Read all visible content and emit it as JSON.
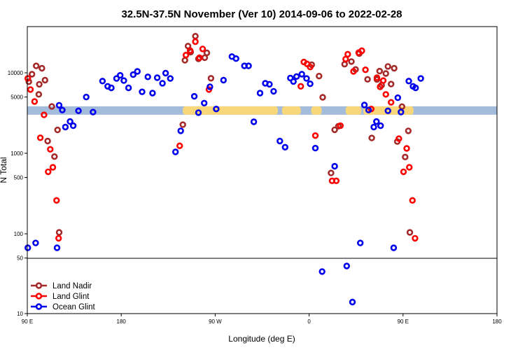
{
  "chart_data": {
    "type": "scatter",
    "title": "32.5N-37.5N November (Ver 10)   2014-09-06 to 2022-02-28",
    "xlabel": "Longitude (deg E)",
    "ylabel": "N Total",
    "x_ticks": [
      {
        "value": 90,
        "label": "90 E"
      },
      {
        "value": 180,
        "label": "180"
      },
      {
        "value": 270,
        "label": "90 W"
      },
      {
        "value": 360,
        "label": "0"
      },
      {
        "value": 450,
        "label": "90 E"
      },
      {
        "value": 540,
        "label": "180"
      }
    ],
    "y_ticks": [
      {
        "value": 10,
        "label": "10"
      },
      {
        "value": 50,
        "label": "50"
      },
      {
        "value": 100,
        "label": "100"
      },
      {
        "value": 500,
        "label": "500"
      },
      {
        "value": 1000,
        "label": "1000"
      },
      {
        "value": 5000,
        "label": "5000"
      },
      {
        "value": 10000,
        "label": "10000"
      }
    ],
    "xlim": [
      90,
      540
    ],
    "ylim": [
      10,
      40000
    ],
    "y_scale": "log",
    "panel_split_y": 50,
    "land_color": "#f8d77a",
    "ocean_color": "#a4bcdc",
    "legend_position": "bottom-left",
    "series": [
      {
        "name": "Land Nadir",
        "color": "#a52a2a",
        "points": [
          [
            91.5,
            7750
          ],
          [
            94.5,
            9600
          ],
          [
            98.5,
            12200
          ],
          [
            101,
            5400
          ],
          [
            101.5,
            7200
          ],
          [
            104,
            11400
          ],
          [
            107,
            8100
          ],
          [
            109.5,
            1420
          ],
          [
            113.5,
            3820
          ],
          [
            116,
            910
          ],
          [
            119,
            1950
          ],
          [
            120.5,
            104
          ],
          [
            239,
            2270
          ],
          [
            241,
            14300
          ],
          [
            244,
            21500
          ],
          [
            246.5,
            18100
          ],
          [
            251,
            28500
          ],
          [
            254,
            14900
          ],
          [
            260,
            15400
          ],
          [
            262,
            17700
          ],
          [
            266,
            8550
          ],
          [
            362.5,
            12600
          ],
          [
            369.5,
            9100
          ],
          [
            373,
            4960
          ],
          [
            381,
            570
          ],
          [
            384.5,
            1960
          ],
          [
            388,
            2170
          ],
          [
            394,
            12800
          ],
          [
            400.5,
            13800
          ],
          [
            404.5,
            11000
          ],
          [
            408,
            17300
          ],
          [
            416,
            8300
          ],
          [
            420,
            1550
          ],
          [
            425,
            8250
          ],
          [
            427.5,
            10500
          ],
          [
            429.5,
            7050
          ],
          [
            433.5,
            9800
          ],
          [
            435.5,
            12000
          ],
          [
            438.5,
            7250
          ],
          [
            441.5,
            11400
          ],
          [
            444.5,
            1400
          ],
          [
            449,
            3800
          ],
          [
            452,
            900
          ],
          [
            455,
            1900
          ],
          [
            456.5,
            104
          ]
        ]
      },
      {
        "name": "Land Glint",
        "color": "#ff0000",
        "points": [
          [
            90.5,
            8500
          ],
          [
            93,
            6200
          ],
          [
            97,
            4400
          ],
          [
            102.5,
            1560
          ],
          [
            106,
            3000
          ],
          [
            110,
            590
          ],
          [
            112,
            1120
          ],
          [
            114.5,
            670
          ],
          [
            118,
            260
          ],
          [
            120,
            88
          ],
          [
            236,
            1240
          ],
          [
            242,
            16600
          ],
          [
            246,
            18900
          ],
          [
            251,
            24400
          ],
          [
            255,
            15400
          ],
          [
            258,
            19800
          ],
          [
            264,
            6200
          ],
          [
            352,
            6800
          ],
          [
            355,
            13600
          ],
          [
            358,
            12900
          ],
          [
            361,
            11800
          ],
          [
            366,
            1660
          ],
          [
            382,
            455
          ],
          [
            386,
            455
          ],
          [
            390,
            2200
          ],
          [
            395,
            14800
          ],
          [
            397,
            17000
          ],
          [
            402.5,
            10400
          ],
          [
            407.5,
            17800
          ],
          [
            410.5,
            18800
          ],
          [
            414,
            10900
          ],
          [
            419.5,
            3550
          ],
          [
            425,
            8700
          ],
          [
            428,
            6700
          ],
          [
            431,
            8000
          ],
          [
            433.5,
            5400
          ],
          [
            438.5,
            4300
          ],
          [
            446,
            1520
          ],
          [
            450.5,
            590
          ],
          [
            453.5,
            1150
          ],
          [
            456,
            670
          ],
          [
            459,
            260
          ],
          [
            461.5,
            88
          ]
        ]
      },
      {
        "name": "Ocean Glint",
        "color": "#0000ee",
        "points": [
          [
            90.5,
            67
          ],
          [
            98,
            77
          ],
          [
            118.5,
            67
          ],
          [
            120.5,
            3950
          ],
          [
            123.5,
            3450
          ],
          [
            126.5,
            2120
          ],
          [
            131,
            2480
          ],
          [
            134,
            2200
          ],
          [
            139,
            3370
          ],
          [
            146.5,
            5000
          ],
          [
            153,
            3250
          ],
          [
            162,
            7900
          ],
          [
            167,
            6800
          ],
          [
            170.5,
            6500
          ],
          [
            175.5,
            8500
          ],
          [
            179,
            9300
          ],
          [
            182.5,
            8000
          ],
          [
            187,
            6500
          ],
          [
            191.5,
            9500
          ],
          [
            195.5,
            10400
          ],
          [
            200,
            5800
          ],
          [
            205.5,
            8900
          ],
          [
            210,
            5600
          ],
          [
            214.5,
            8700
          ],
          [
            219.5,
            7400
          ],
          [
            222.5,
            9900
          ],
          [
            227,
            8500
          ],
          [
            232,
            1040
          ],
          [
            237,
            1900
          ],
          [
            250,
            5100
          ],
          [
            254,
            3200
          ],
          [
            259.5,
            4200
          ],
          [
            265,
            6700
          ],
          [
            271,
            3550
          ],
          [
            278,
            8100
          ],
          [
            286,
            15900
          ],
          [
            290,
            15000
          ],
          [
            298,
            12200
          ],
          [
            302,
            12200
          ],
          [
            307,
            2460
          ],
          [
            313,
            5600
          ],
          [
            318,
            7400
          ],
          [
            322,
            7200
          ],
          [
            326,
            5900
          ],
          [
            332,
            1420
          ],
          [
            337,
            1190
          ],
          [
            342,
            8600
          ],
          [
            345,
            7800
          ],
          [
            348,
            9000
          ],
          [
            353,
            9600
          ],
          [
            357.5,
            8500
          ],
          [
            361,
            7300
          ],
          [
            366,
            1160
          ],
          [
            372.5,
            34
          ],
          [
            384.5,
            690
          ],
          [
            396,
            40
          ],
          [
            401.5,
            14
          ],
          [
            409,
            77
          ],
          [
            413,
            3980
          ],
          [
            417,
            3450
          ],
          [
            422,
            2120
          ],
          [
            424.5,
            2480
          ],
          [
            428.5,
            2200
          ],
          [
            435.5,
            3370
          ],
          [
            441,
            67
          ],
          [
            445,
            4900
          ],
          [
            448,
            3250
          ],
          [
            455.5,
            7900
          ],
          [
            459.5,
            6800
          ],
          [
            462,
            6500
          ],
          [
            467,
            8500
          ]
        ]
      }
    ]
  }
}
